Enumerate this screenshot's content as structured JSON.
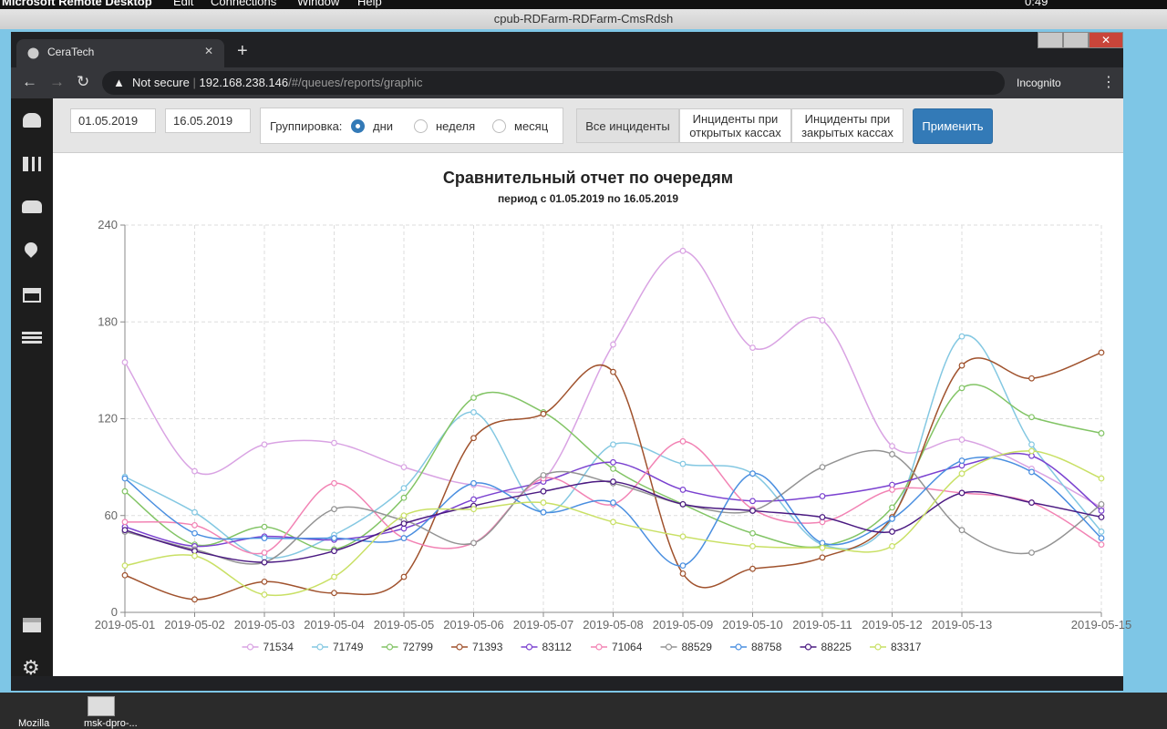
{
  "menubar": {
    "app": "Microsoft Remote Desktop",
    "items": [
      "Edit",
      "Connections",
      "Window",
      "Help"
    ],
    "clock": "0:49"
  },
  "rdp_title": "cpub-RDFarm-RDFarm-CmsRdsh",
  "browser": {
    "tab": "CeraTech",
    "security": "Not secure",
    "url_host": "192.168.238.146",
    "url_path": "/#/queues/reports/graphic",
    "mode": "Incognito"
  },
  "toolbar": {
    "date_from": "01.05.2019",
    "date_to": "16.05.2019",
    "grouping_label": "Группировка:",
    "grouping_options": [
      "дни",
      "неделя",
      "месяц"
    ],
    "grouping_selected": 0,
    "filters": [
      "Все инциденты",
      "Инциденты при открытых кассах",
      "Инциденты при закрытых кассах"
    ],
    "filter_selected": 0,
    "apply": "Применить"
  },
  "chart_data": {
    "type": "line",
    "title": "Сравнительный отчет по очередям",
    "subtitle": "период с 01.05.2019 по 16.05.2019",
    "categories": [
      "2019-05-01",
      "2019-05-02",
      "2019-05-03",
      "2019-05-04",
      "2019-05-05",
      "2019-05-06",
      "2019-05-07",
      "2019-05-08",
      "2019-05-09",
      "2019-05-10",
      "2019-05-11",
      "2019-05-12",
      "2019-05-13",
      null,
      "2019-05-15"
    ],
    "ylim": [
      0,
      240
    ],
    "yticks": [
      0,
      60,
      120,
      180,
      240
    ],
    "grid": true,
    "legend": "bottom",
    "smooth": true,
    "series": [
      {
        "name": "71534",
        "color": "#d9a3e3",
        "values": [
          155,
          87.5,
          104,
          105,
          90,
          79,
          82,
          166,
          224,
          164,
          181,
          103,
          107,
          89,
          65
        ]
      },
      {
        "name": "71749",
        "color": "#84c8e2",
        "values": [
          84,
          62,
          34,
          48,
          77,
          124,
          62,
          104,
          92,
          86,
          42,
          58,
          171,
          104,
          50
        ]
      },
      {
        "name": "72799",
        "color": "#82c465",
        "values": [
          75,
          42,
          53,
          39,
          71,
          133,
          124,
          89,
          67,
          49,
          41,
          65,
          139,
          121,
          111
        ]
      },
      {
        "name": "71393",
        "color": "#a0522d",
        "values": [
          23,
          8,
          19,
          12,
          22,
          108,
          123,
          149,
          24,
          27,
          34,
          59,
          153,
          145,
          161
        ]
      },
      {
        "name": "83112",
        "color": "#7b42d0",
        "values": [
          53,
          41,
          47,
          45,
          52,
          70,
          81,
          93,
          76,
          69,
          72,
          79,
          91,
          97,
          63
        ]
      },
      {
        "name": "71064",
        "color": "#f283b4",
        "values": [
          56,
          54,
          37,
          80,
          46,
          43,
          83,
          67,
          106,
          64,
          56,
          76,
          74,
          68,
          42
        ]
      },
      {
        "name": "88529",
        "color": "#939393",
        "values": [
          50,
          39,
          31,
          64,
          57,
          43,
          85,
          80,
          67,
          63,
          90,
          98,
          51,
          37,
          67
        ]
      },
      {
        "name": "88758",
        "color": "#4a8fe0",
        "values": [
          83,
          49,
          46,
          46,
          46,
          80,
          62,
          68,
          29,
          86,
          43,
          58,
          94,
          87,
          46
        ]
      },
      {
        "name": "88225",
        "color": "#4b1a82",
        "values": [
          51,
          38,
          31,
          38,
          55,
          66,
          75,
          81,
          67,
          63,
          59,
          50,
          74,
          68,
          59
        ]
      },
      {
        "name": "83317",
        "color": "#c9e065",
        "values": [
          29,
          35,
          11,
          22,
          60,
          64,
          68,
          56,
          47,
          41,
          40,
          41,
          86,
          100,
          83
        ]
      }
    ]
  },
  "desktop": {
    "icons": [
      "Mozilla",
      "msk-dpro-..."
    ]
  }
}
